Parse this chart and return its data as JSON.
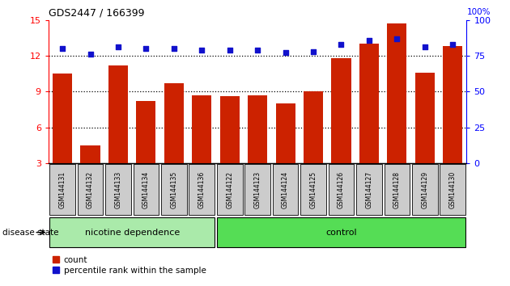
{
  "title": "GDS2447 / 166399",
  "samples": [
    "GSM144131",
    "GSM144132",
    "GSM144133",
    "GSM144134",
    "GSM144135",
    "GSM144136",
    "GSM144122",
    "GSM144123",
    "GSM144124",
    "GSM144125",
    "GSM144126",
    "GSM144127",
    "GSM144128",
    "GSM144129",
    "GSM144130"
  ],
  "count_values": [
    10.5,
    4.5,
    11.2,
    8.2,
    9.7,
    8.7,
    8.6,
    8.7,
    8.0,
    9.0,
    11.8,
    13.0,
    14.7,
    10.6,
    12.8
  ],
  "percentile_values": [
    80,
    76,
    81,
    80,
    80,
    79,
    79,
    79,
    77,
    78,
    83,
    86,
    87,
    81,
    83
  ],
  "nicotine_count": 6,
  "control_count": 9,
  "ylim_left": [
    3,
    15
  ],
  "ylim_right": [
    0,
    100
  ],
  "yticks_left": [
    3,
    6,
    9,
    12,
    15
  ],
  "yticks_right": [
    0,
    25,
    50,
    75,
    100
  ],
  "bar_color": "#cc2200",
  "dot_color": "#1111cc",
  "nicotine_label": "nicotine dependence",
  "control_label": "control",
  "nicotine_bg": "#aaeaaa",
  "control_bg": "#55dd55",
  "legend_count_label": "count",
  "legend_percentile_label": "percentile rank within the sample",
  "disease_state_label": "disease state",
  "box_bg": "#cccccc",
  "right_axis_top_label": "100%"
}
